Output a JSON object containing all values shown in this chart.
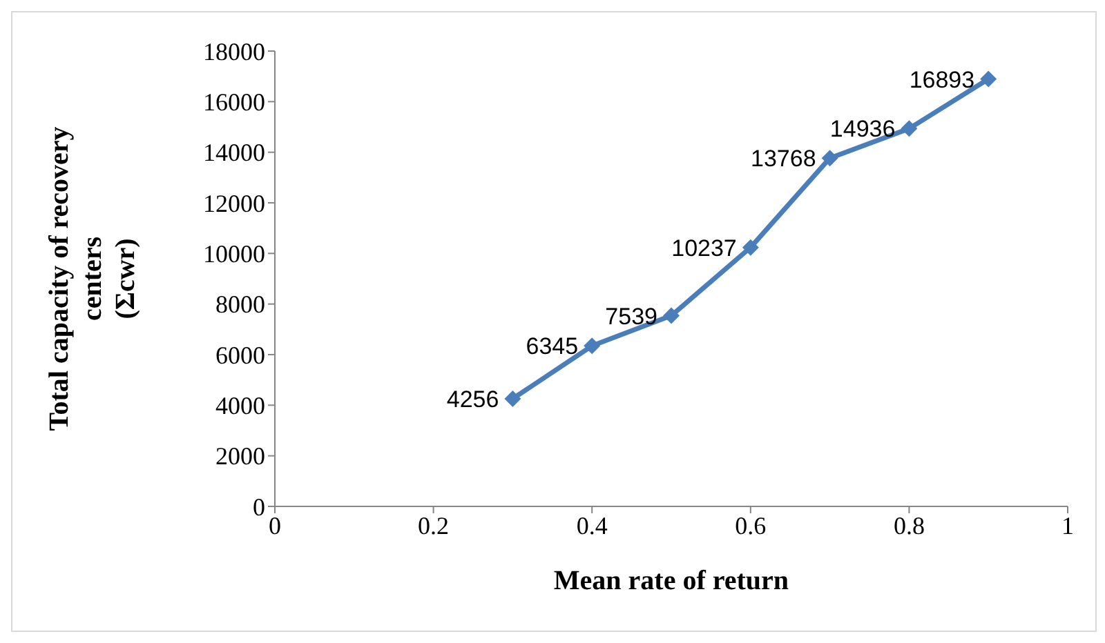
{
  "chart_data": {
    "type": "line",
    "xlabel": "Mean rate of return",
    "ylabel": "Total capacity of recovery centers (Σcwr)",
    "x": [
      0.3,
      0.4,
      0.5,
      0.6,
      0.7,
      0.8,
      0.9
    ],
    "series": [
      {
        "color": "#4a7ebb",
        "values": [
          4256,
          6345,
          7539,
          10237,
          13768,
          14936,
          16893
        ]
      }
    ],
    "xlim": [
      0,
      1
    ],
    "xticks": [
      0,
      0.2,
      0.4,
      0.6,
      0.8,
      1
    ],
    "ylim": [
      0,
      18000
    ],
    "yticks": [
      0,
      2000,
      4000,
      6000,
      8000,
      10000,
      12000,
      14000,
      16000,
      18000
    ],
    "grid": false,
    "legend": false,
    "marker": "diamond",
    "line_style": "solid",
    "data_labels": true
  }
}
